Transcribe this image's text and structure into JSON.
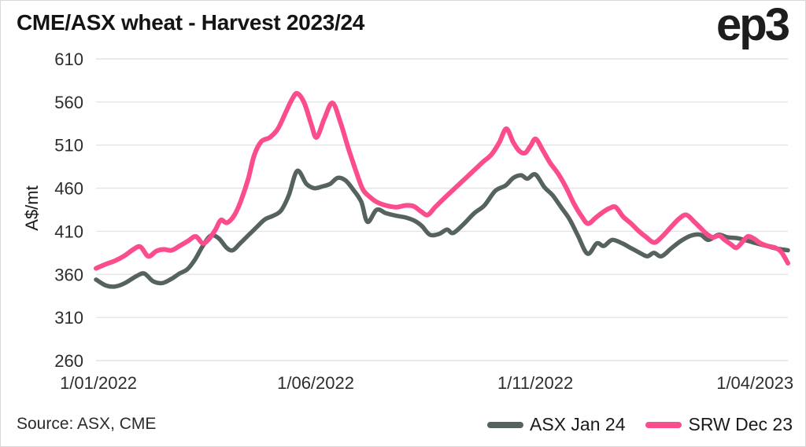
{
  "header": {
    "title": "CME/ASX wheat - Harvest 2023/24",
    "logo_text": "ep3"
  },
  "footer": {
    "source": "Source: ASX, CME"
  },
  "chart_data": {
    "type": "line",
    "title": "CME/ASX wheat - Harvest 2023/24",
    "ylabel": "A$/mt",
    "xlabel": "",
    "ylim": [
      260,
      610
    ],
    "xlim": [
      0,
      15.75
    ],
    "grid": "horizontal",
    "grid_color": "#e4e4e4",
    "tick_color": "#2d2d2d",
    "tick_font_size": 22,
    "legend_position": "bottom-right",
    "y_ticks": [
      260,
      310,
      360,
      410,
      460,
      510,
      560,
      610
    ],
    "x_ticks": [
      {
        "m": 0,
        "label": "1/01/2022"
      },
      {
        "m": 5,
        "label": "1/06/2022"
      },
      {
        "m": 10,
        "label": "1/11/2022"
      },
      {
        "m": 15,
        "label": "1/04/2023"
      }
    ],
    "x_unit": "months since 1/01/2022",
    "series": [
      {
        "name": "ASX Jan 24",
        "color": "#55625e",
        "width": 5.5,
        "points": [
          [
            0,
            354
          ],
          [
            0.23,
            347
          ],
          [
            0.44,
            346
          ],
          [
            0.66,
            350
          ],
          [
            0.92,
            358
          ],
          [
            1.1,
            361
          ],
          [
            1.3,
            352
          ],
          [
            1.51,
            350
          ],
          [
            1.72,
            355
          ],
          [
            1.9,
            361
          ],
          [
            2.08,
            366
          ],
          [
            2.25,
            377
          ],
          [
            2.43,
            393
          ],
          [
            2.61,
            405
          ],
          [
            2.79,
            402
          ],
          [
            2.97,
            391
          ],
          [
            3.11,
            388
          ],
          [
            3.28,
            396
          ],
          [
            3.5,
            407
          ],
          [
            3.68,
            416
          ],
          [
            3.85,
            424
          ],
          [
            4.03,
            428
          ],
          [
            4.21,
            434
          ],
          [
            4.39,
            452
          ],
          [
            4.58,
            480
          ],
          [
            4.79,
            465
          ],
          [
            4.97,
            460
          ],
          [
            5.15,
            462
          ],
          [
            5.33,
            465
          ],
          [
            5.5,
            472
          ],
          [
            5.68,
            469
          ],
          [
            5.86,
            458
          ],
          [
            6.04,
            444
          ],
          [
            6.18,
            421
          ],
          [
            6.39,
            435
          ],
          [
            6.6,
            431
          ],
          [
            6.84,
            428
          ],
          [
            7.05,
            426
          ],
          [
            7.26,
            422
          ],
          [
            7.42,
            416
          ],
          [
            7.6,
            406
          ],
          [
            7.81,
            407
          ],
          [
            7.99,
            412
          ],
          [
            8.13,
            408
          ],
          [
            8.38,
            419
          ],
          [
            8.61,
            431
          ],
          [
            8.84,
            440
          ],
          [
            9.09,
            457
          ],
          [
            9.32,
            463
          ],
          [
            9.5,
            472
          ],
          [
            9.68,
            475
          ],
          [
            9.82,
            471
          ],
          [
            10,
            476
          ],
          [
            10.21,
            461
          ],
          [
            10.39,
            452
          ],
          [
            10.6,
            437
          ],
          [
            10.78,
            424
          ],
          [
            10.97,
            405
          ],
          [
            11.19,
            384
          ],
          [
            11.4,
            396
          ],
          [
            11.56,
            393
          ],
          [
            11.75,
            400
          ],
          [
            11.98,
            396
          ],
          [
            12.16,
            391
          ],
          [
            12.38,
            385
          ],
          [
            12.55,
            381
          ],
          [
            12.7,
            385
          ],
          [
            12.87,
            381
          ],
          [
            13.09,
            390
          ],
          [
            13.32,
            399
          ],
          [
            13.55,
            405
          ],
          [
            13.76,
            406
          ],
          [
            13.94,
            400
          ],
          [
            14.17,
            406
          ],
          [
            14.38,
            403
          ],
          [
            14.6,
            402
          ],
          [
            14.83,
            399
          ],
          [
            15.04,
            396
          ],
          [
            15.27,
            393
          ],
          [
            15.5,
            390
          ],
          [
            15.75,
            388
          ]
        ]
      },
      {
        "name": "SRW Dec 23",
        "color": "#fb4d8d",
        "width": 6,
        "points": [
          [
            0,
            367
          ],
          [
            0.23,
            372
          ],
          [
            0.44,
            376
          ],
          [
            0.66,
            382
          ],
          [
            0.85,
            389
          ],
          [
            1.01,
            392
          ],
          [
            1.19,
            381
          ],
          [
            1.37,
            387
          ],
          [
            1.54,
            389
          ],
          [
            1.72,
            388
          ],
          [
            1.9,
            393
          ],
          [
            2.1,
            399
          ],
          [
            2.27,
            404
          ],
          [
            2.43,
            396
          ],
          [
            2.57,
            401
          ],
          [
            2.72,
            412
          ],
          [
            2.84,
            423
          ],
          [
            2.98,
            420
          ],
          [
            3.14,
            428
          ],
          [
            3.28,
            443
          ],
          [
            3.46,
            470
          ],
          [
            3.6,
            498
          ],
          [
            3.76,
            514
          ],
          [
            3.96,
            519
          ],
          [
            4.14,
            529
          ],
          [
            4.31,
            547
          ],
          [
            4.46,
            563
          ],
          [
            4.58,
            570
          ],
          [
            4.74,
            559
          ],
          [
            4.9,
            534
          ],
          [
            5.02,
            519
          ],
          [
            5.2,
            541
          ],
          [
            5.38,
            559
          ],
          [
            5.56,
            537
          ],
          [
            5.74,
            507
          ],
          [
            5.91,
            481
          ],
          [
            6.07,
            459
          ],
          [
            6.23,
            450
          ],
          [
            6.39,
            444
          ],
          [
            6.6,
            440
          ],
          [
            6.84,
            438
          ],
          [
            7.05,
            440
          ],
          [
            7.23,
            439
          ],
          [
            7.4,
            433
          ],
          [
            7.55,
            429
          ],
          [
            7.72,
            438
          ],
          [
            7.94,
            449
          ],
          [
            8.17,
            460
          ],
          [
            8.38,
            470
          ],
          [
            8.61,
            481
          ],
          [
            8.82,
            491
          ],
          [
            9,
            499
          ],
          [
            9.18,
            513
          ],
          [
            9.34,
            529
          ],
          [
            9.5,
            513
          ],
          [
            9.64,
            503
          ],
          [
            9.77,
            501
          ],
          [
            9.89,
            509
          ],
          [
            10.01,
            517
          ],
          [
            10.17,
            504
          ],
          [
            10.33,
            490
          ],
          [
            10.53,
            476
          ],
          [
            10.71,
            460
          ],
          [
            10.88,
            442
          ],
          [
            11.06,
            427
          ],
          [
            11.2,
            419
          ],
          [
            11.38,
            426
          ],
          [
            11.56,
            433
          ],
          [
            11.7,
            437
          ],
          [
            11.83,
            438
          ],
          [
            12,
            427
          ],
          [
            12.18,
            419
          ],
          [
            12.36,
            410
          ],
          [
            12.53,
            403
          ],
          [
            12.71,
            397
          ],
          [
            12.89,
            404
          ],
          [
            13.09,
            415
          ],
          [
            13.28,
            425
          ],
          [
            13.44,
            429
          ],
          [
            13.62,
            421
          ],
          [
            13.76,
            414
          ],
          [
            13.9,
            407
          ],
          [
            14.04,
            403
          ],
          [
            14.19,
            405
          ],
          [
            14.31,
            400
          ],
          [
            14.45,
            395
          ],
          [
            14.58,
            391
          ],
          [
            14.72,
            398
          ],
          [
            14.84,
            404
          ],
          [
            14.99,
            401
          ],
          [
            15.13,
            396
          ],
          [
            15.29,
            393
          ],
          [
            15.46,
            391
          ],
          [
            15.6,
            386
          ],
          [
            15.75,
            373
          ]
        ]
      }
    ]
  }
}
